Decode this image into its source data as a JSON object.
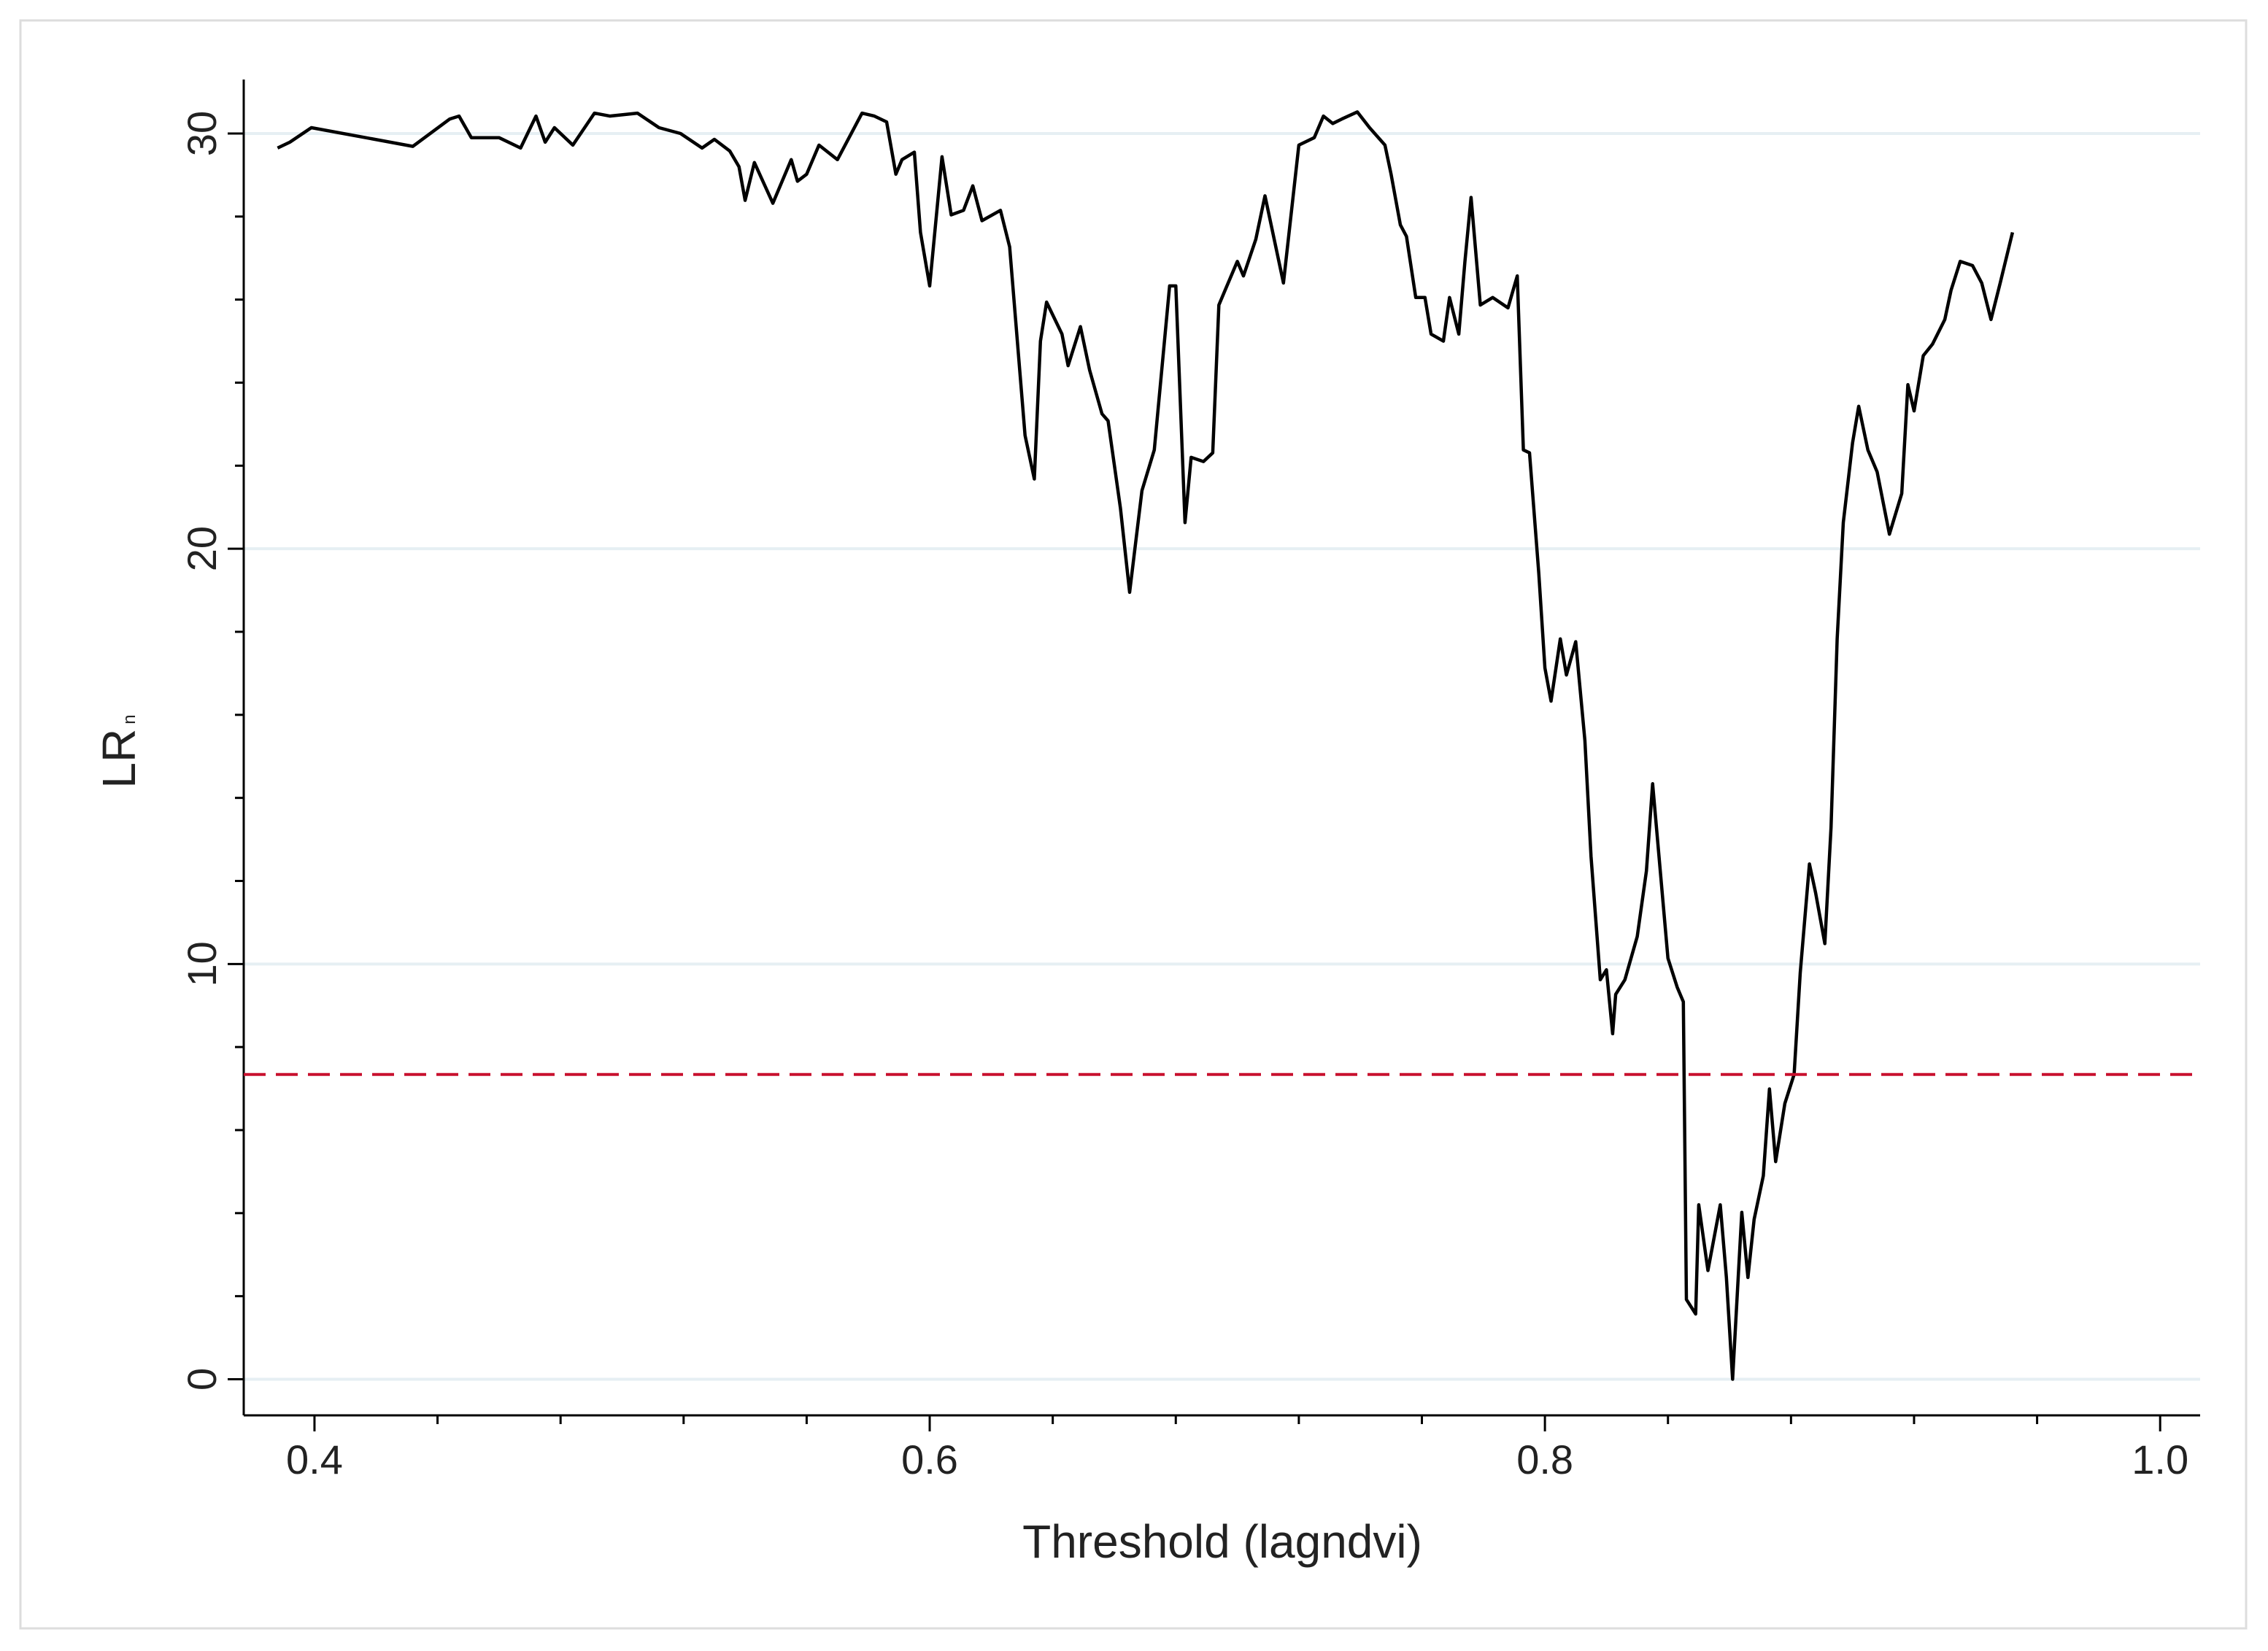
{
  "chart_data": {
    "type": "line",
    "xlabel": "Threshold (lagndvi)",
    "ylabel": "LR",
    "ylabel_sub": "n",
    "xlim": [
      0.377,
      1.013
    ],
    "ylim": [
      -0.87,
      31.3
    ],
    "xticks": [
      0.4,
      0.6,
      0.8,
      {
        "value": 1,
        "label": "1.0"
      }
    ],
    "xminorticks": [
      0.44,
      0.48,
      0.52,
      0.56,
      0.64,
      0.68,
      0.72,
      0.76,
      0.84,
      0.88,
      0.92,
      0.96
    ],
    "yticks": [
      0,
      10,
      20,
      30
    ],
    "yminorticks": [
      2,
      4,
      6,
      8,
      12,
      14,
      16,
      18,
      22,
      24,
      26,
      28
    ],
    "grid": true,
    "reference_line": {
      "value": 7.34,
      "color": "#c8102e"
    },
    "series": [
      {
        "color": "#000000",
        "x": [
          0.388,
          0.392,
          0.399,
          0.432,
          0.444,
          0.447,
          0.451,
          0.46,
          0.467,
          0.472,
          0.475,
          0.478,
          0.484,
          0.491,
          0.496,
          0.505,
          0.512,
          0.519,
          0.526,
          0.53,
          0.535,
          0.538,
          0.54,
          0.543,
          0.549,
          0.555,
          0.557,
          0.56,
          0.564,
          0.57,
          0.578,
          0.582,
          0.586,
          0.589,
          0.591,
          0.595,
          0.597,
          0.6,
          0.604,
          0.607,
          0.611,
          0.614,
          0.617,
          0.623,
          0.626,
          0.631,
          0.634,
          0.636,
          0.638,
          0.643,
          0.645,
          0.649,
          0.652,
          0.656,
          0.658,
          0.662,
          0.665,
          0.669,
          0.673,
          0.678,
          0.68,
          0.683,
          0.685,
          0.689,
          0.692,
          0.694,
          0.696,
          0.7,
          0.702,
          0.706,
          0.709,
          0.715,
          0.72,
          0.725,
          0.728,
          0.731,
          0.734,
          0.739,
          0.743,
          0.748,
          0.75,
          0.753,
          0.755,
          0.758,
          0.761,
          0.763,
          0.767,
          0.769,
          0.772,
          0.774,
          0.776,
          0.779,
          0.783,
          0.788,
          0.791,
          0.793,
          0.795,
          0.798,
          0.8,
          0.802,
          0.805,
          0.807,
          0.81,
          0.813,
          0.815,
          0.818,
          0.82,
          0.822,
          0.823,
          0.826,
          0.83,
          0.833,
          0.835,
          0.84,
          0.843,
          0.845,
          0.846,
          0.849,
          0.85,
          0.853,
          0.857,
          0.859,
          0.861,
          0.864,
          0.866,
          0.868,
          0.871,
          0.873,
          0.875,
          0.878,
          0.881,
          0.883,
          0.886,
          0.888,
          0.891,
          0.893,
          0.895,
          0.897,
          0.9,
          0.902,
          0.905,
          0.908,
          0.912,
          0.916,
          0.918,
          0.92,
          0.923,
          0.926,
          0.93,
          0.932,
          0.935,
          0.939,
          0.942,
          0.945,
          0.948,
          0.952
        ],
        "values": [
          29.65,
          29.79,
          30.14,
          29.69,
          30.35,
          30.42,
          29.9,
          29.9,
          29.65,
          30.42,
          29.79,
          30.14,
          29.72,
          30.49,
          30.42,
          30.49,
          30.14,
          30.0,
          29.65,
          29.86,
          29.58,
          29.2,
          28.39,
          29.3,
          28.32,
          29.37,
          28.85,
          29.02,
          29.72,
          29.37,
          30.49,
          30.42,
          30.28,
          29.02,
          29.37,
          29.55,
          27.62,
          26.33,
          29.44,
          28.04,
          28.15,
          28.74,
          27.9,
          28.15,
          27.27,
          22.73,
          21.68,
          25.0,
          25.94,
          25.17,
          24.41,
          25.35,
          24.3,
          23.25,
          23.08,
          20.98,
          18.95,
          21.4,
          22.38,
          26.33,
          26.33,
          20.63,
          22.2,
          22.1,
          22.31,
          25.87,
          26.22,
          26.92,
          26.57,
          27.45,
          28.5,
          26.4,
          29.72,
          29.9,
          30.42,
          30.24,
          30.35,
          30.52,
          30.14,
          29.72,
          29.02,
          27.8,
          27.52,
          26.05,
          26.05,
          25.17,
          25.0,
          26.05,
          25.17,
          26.92,
          28.46,
          25.87,
          26.05,
          25.8,
          26.57,
          22.38,
          22.31,
          19.41,
          17.13,
          16.33,
          17.83,
          16.96,
          17.76,
          15.38,
          12.59,
          9.62,
          9.86,
          8.32,
          9.27,
          9.62,
          10.66,
          12.24,
          14.34,
          10.14,
          9.44,
          9.09,
          1.92,
          1.57,
          4.2,
          2.62,
          4.2,
          2.45,
          0.0,
          4.02,
          2.45,
          3.85,
          4.9,
          6.99,
          5.24,
          6.64,
          7.34,
          9.79,
          12.41,
          11.71,
          10.49,
          13.29,
          17.83,
          20.63,
          22.55,
          23.43,
          22.38,
          21.85,
          20.35,
          21.33,
          23.95,
          23.32,
          24.65,
          24.93,
          25.52,
          26.22,
          26.92,
          26.82,
          26.4,
          25.52,
          26.4,
          27.62
        ]
      }
    ]
  }
}
